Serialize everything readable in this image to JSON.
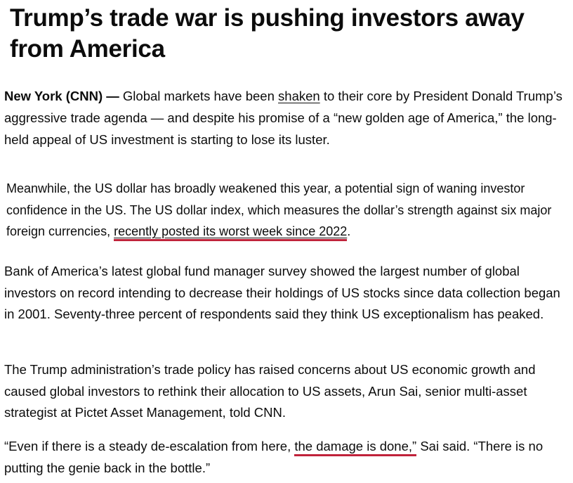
{
  "article": {
    "headline": "Trump’s trade war is pushing investors away from America",
    "p1": {
      "dateline": "New York (CNN) —",
      "before_link": " Global markets have been ",
      "link": "shaken",
      "after_link": " to their core by President Donald Trump’s aggressive trade agenda — and despite his promise of a “new golden age of America,” the long-held appeal of US investment is starting to lose its luster."
    },
    "p2": {
      "text": "Meanwhile, the US dollar has broadly weakened this year, a potential sign of waning investor confidence in the US. The US dollar index, which measures the dollar’s strength against six major foreign currencies, ",
      "highlight": "recently posted its worst week since 2022",
      "after": "."
    },
    "p3": {
      "text": "Bank of America’s latest global fund manager survey showed the largest number of global investors on record intending to decrease their holdings of US stocks since data collection began in 2001. Seventy-three percent of respondents said they think US exceptionalism has peaked."
    },
    "p4": {
      "text": "The Trump administration’s trade policy has raised concerns about US economic growth and caused global investors to rethink their allocation to US assets, Arun Sai, senior multi-asset strategist at Pictet Asset Management, told CNN."
    },
    "p5": {
      "before": "“Even if there is a steady de-escalation from here, ",
      "highlight": "the damage is done,”",
      "after": " Sai said. “There is no putting the genie back in the bottle.”"
    }
  },
  "colors": {
    "text": "#0c0c0c",
    "highlight_underline": "#c0223a"
  }
}
